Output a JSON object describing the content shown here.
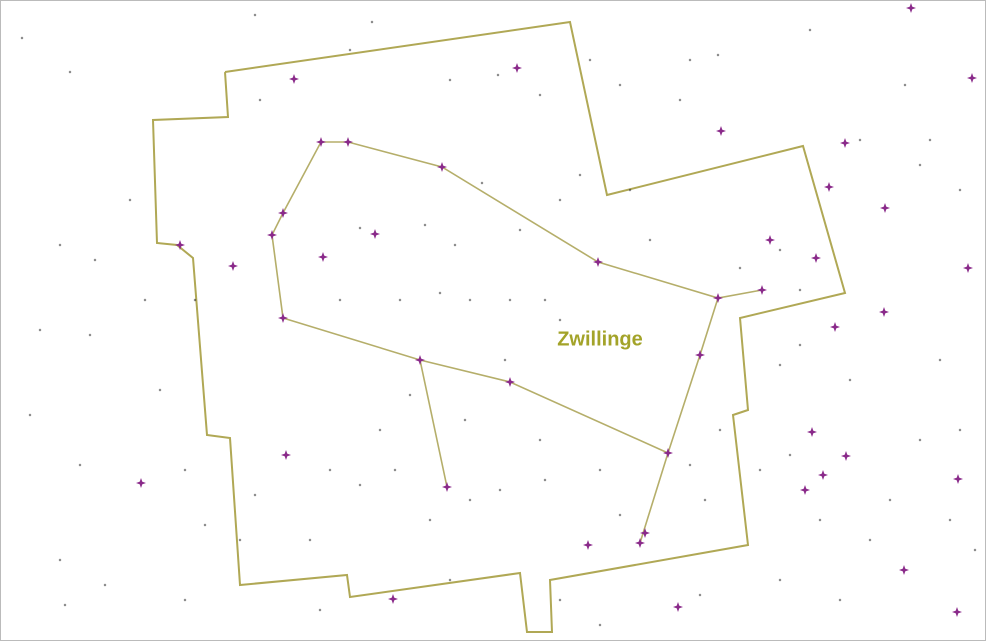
{
  "map": {
    "label": "Zwillinge"
  }
}
